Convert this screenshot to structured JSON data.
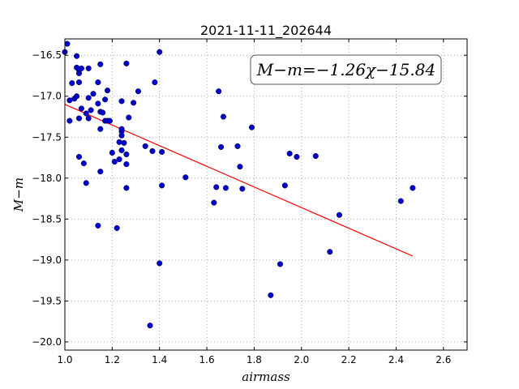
{
  "chart_data": {
    "type": "scatter",
    "title": "2021-11-11_202644",
    "xlabel": "airmass",
    "ylabel": "M−m",
    "xlim": [
      1.0,
      2.7
    ],
    "ylim": [
      -20.1,
      -16.3
    ],
    "xticks": [
      1.0,
      1.2,
      1.4,
      1.6,
      1.8,
      2.0,
      2.2,
      2.4,
      2.6
    ],
    "xtick_labels": [
      "1.0",
      "1.2",
      "1.4",
      "1.6",
      "1.8",
      "2.0",
      "2.2",
      "2.4",
      "2.6"
    ],
    "yticks": [
      -16.5,
      -17.0,
      -17.5,
      -18.0,
      -18.5,
      -19.0,
      -19.5,
      -20.0
    ],
    "ytick_labels": [
      "−16.5",
      "−17.0",
      "−17.5",
      "−18.0",
      "−18.5",
      "−19.0",
      "−19.5",
      "−20.0"
    ],
    "grid": true,
    "annotation": "M−m=−1.26χ−15.84",
    "fit": {
      "slope": -1.26,
      "intercept": -15.84,
      "x_range": [
        1.0,
        2.47
      ]
    },
    "colors": {
      "points": "#0000cc",
      "fit_line": "#ff0000",
      "grid": "#999999"
    },
    "points": [
      [
        1.0,
        -16.46
      ],
      [
        1.01,
        -16.36
      ],
      [
        1.02,
        -17.3
      ],
      [
        1.02,
        -17.05
      ],
      [
        1.03,
        -16.84
      ],
      [
        1.04,
        -17.03
      ],
      [
        1.05,
        -16.65
      ],
      [
        1.05,
        -16.51
      ],
      [
        1.05,
        -17.0
      ],
      [
        1.06,
        -16.72
      ],
      [
        1.06,
        -16.68
      ],
      [
        1.06,
        -16.83
      ],
      [
        1.06,
        -17.27
      ],
      [
        1.06,
        -17.74
      ],
      [
        1.07,
        -17.15
      ],
      [
        1.07,
        -16.66
      ],
      [
        1.08,
        -17.82
      ],
      [
        1.09,
        -18.06
      ],
      [
        1.09,
        -17.21
      ],
      [
        1.1,
        -17.02
      ],
      [
        1.1,
        -16.66
      ],
      [
        1.1,
        -17.27
      ],
      [
        1.11,
        -17.17
      ],
      [
        1.12,
        -16.97
      ],
      [
        1.14,
        -16.83
      ],
      [
        1.14,
        -17.09
      ],
      [
        1.14,
        -18.58
      ],
      [
        1.15,
        -17.92
      ],
      [
        1.15,
        -17.4
      ],
      [
        1.15,
        -17.19
      ],
      [
        1.15,
        -16.61
      ],
      [
        1.16,
        -17.2
      ],
      [
        1.17,
        -17.04
      ],
      [
        1.17,
        -17.3
      ],
      [
        1.18,
        -16.93
      ],
      [
        1.18,
        -17.3
      ],
      [
        1.19,
        -17.3
      ],
      [
        1.2,
        -17.69
      ],
      [
        1.21,
        -17.8
      ],
      [
        1.22,
        -18.61
      ],
      [
        1.23,
        -17.77
      ],
      [
        1.23,
        -17.56
      ],
      [
        1.24,
        -17.06
      ],
      [
        1.24,
        -17.66
      ],
      [
        1.24,
        -17.43
      ],
      [
        1.24,
        -17.4
      ],
      [
        1.24,
        -17.48
      ],
      [
        1.25,
        -17.57
      ],
      [
        1.26,
        -16.6
      ],
      [
        1.26,
        -17.71
      ],
      [
        1.26,
        -17.83
      ],
      [
        1.26,
        -18.12
      ],
      [
        1.27,
        -17.26
      ],
      [
        1.29,
        -17.08
      ],
      [
        1.31,
        -16.94
      ],
      [
        1.34,
        -17.61
      ],
      [
        1.37,
        -17.67
      ],
      [
        1.38,
        -16.83
      ],
      [
        1.4,
        -16.46
      ],
      [
        1.4,
        -19.04
      ],
      [
        1.41,
        -17.68
      ],
      [
        1.41,
        -18.09
      ],
      [
        1.51,
        -17.99
      ],
      [
        1.63,
        -18.3
      ],
      [
        1.64,
        -18.11
      ],
      [
        1.65,
        -16.94
      ],
      [
        1.66,
        -17.62
      ],
      [
        1.67,
        -17.25
      ],
      [
        1.68,
        -18.12
      ],
      [
        1.73,
        -17.61
      ],
      [
        1.74,
        -17.86
      ],
      [
        1.75,
        -18.13
      ],
      [
        1.79,
        -17.38
      ],
      [
        1.87,
        -19.43
      ],
      [
        1.91,
        -19.05
      ],
      [
        1.93,
        -18.09
      ],
      [
        1.95,
        -17.7
      ],
      [
        1.98,
        -17.74
      ],
      [
        2.06,
        -17.73
      ],
      [
        2.12,
        -18.9
      ],
      [
        2.16,
        -18.45
      ],
      [
        2.42,
        -18.28
      ],
      [
        2.47,
        -18.12
      ],
      [
        1.36,
        -19.8
      ]
    ]
  }
}
